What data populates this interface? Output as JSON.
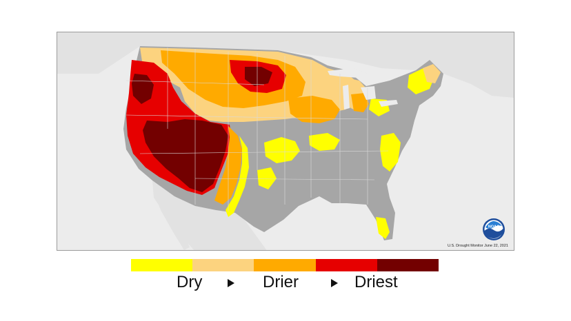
{
  "map": {
    "credit": "U.S. Drought Monitor June 22, 2021",
    "logo_text": "NOAA",
    "logo_icon": "noaa-logo-icon",
    "colors": {
      "ocean": "#ececec",
      "land_other": "#e2e2e2",
      "no_drought": "#a6a6a6",
      "state_lines": "#dadada"
    }
  },
  "legend": {
    "colors": [
      "#ffff00",
      "#fcd37f",
      "#ffaa00",
      "#e60000",
      "#730000"
    ],
    "labels": {
      "left": "Dry",
      "middle": "Drier",
      "right": "Driest"
    },
    "arrow_icon": "triangle-right-icon"
  }
}
